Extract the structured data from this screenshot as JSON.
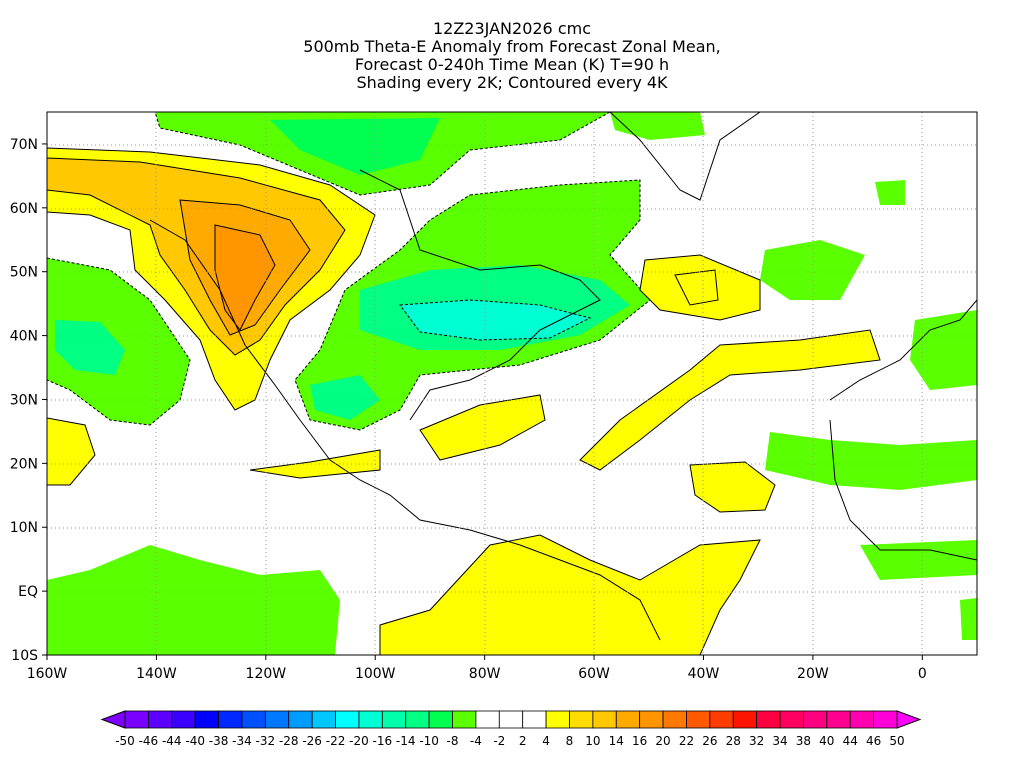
{
  "title": {
    "line1": "12Z23JAN2026 cmc",
    "line2": "500mb Theta-E Anomaly from Forecast Zonal Mean,",
    "line3": "Forecast 0-240h Time Mean (K) T=90 h",
    "line4": "Shading every 2K; Contoured every 4K"
  },
  "map": {
    "lon_range": [
      -160,
      10
    ],
    "lat_range": [
      -10,
      75
    ],
    "lat_labels": [
      "70N",
      "60N",
      "50N",
      "40N",
      "30N",
      "20N",
      "10N",
      "EQ",
      "10S"
    ],
    "lat_values": [
      70,
      60,
      50,
      40,
      30,
      20,
      10,
      0,
      -10
    ],
    "lon_labels": [
      "160W",
      "140W",
      "120W",
      "100W",
      "80W",
      "60W",
      "40W",
      "20W",
      "0"
    ],
    "lon_values": [
      -160,
      -140,
      -120,
      -100,
      -80,
      -60,
      -40,
      -20,
      0
    ]
  },
  "colorbar": {
    "labels": [
      "-50",
      "-46",
      "-44",
      "-40",
      "-38",
      "-34",
      "-32",
      "-28",
      "-26",
      "-22",
      "-20",
      "-16",
      "-14",
      "-10",
      "-8",
      "-4",
      "-2",
      "2",
      "4",
      "8",
      "10",
      "14",
      "16",
      "20",
      "22",
      "26",
      "28",
      "32",
      "34",
      "38",
      "40",
      "44",
      "46",
      "50"
    ],
    "colors": [
      "#7a00ff",
      "#5e00ff",
      "#3c00ff",
      "#0000ff",
      "#0028ff",
      "#0050ff",
      "#0078ff",
      "#009cff",
      "#00c8ff",
      "#00ffff",
      "#00ffd2",
      "#00ffaa",
      "#00ff82",
      "#00ff50",
      "#5aff00",
      "#ffffff",
      "#ffffff",
      "#ffffff",
      "#ffff00",
      "#ffdc00",
      "#ffc800",
      "#ffaa00",
      "#ff9600",
      "#ff7800",
      "#ff5a00",
      "#ff3c00",
      "#ff1400",
      "#ff0040",
      "#ff0060",
      "#ff0080",
      "#ff0090",
      "#ff00b0",
      "#ff00d8"
    ],
    "low_color": "#8000ff",
    "high_color": "#ff00ff"
  }
}
